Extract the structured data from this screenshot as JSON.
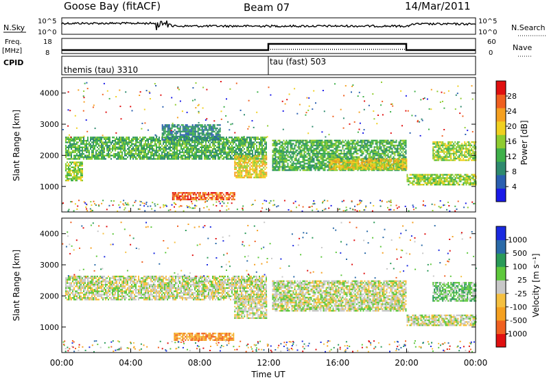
{
  "header": {
    "station": "Goose Bay (fitACF)",
    "beam": "Beam 07",
    "date": "14/Mar/2011"
  },
  "top_panel": {
    "left_label": "N.Sky",
    "right_label": "N.Search",
    "left_ticks": [
      "10^5",
      "10^0"
    ],
    "right_ticks": [
      "10^5",
      "10^0"
    ],
    "freq_label_1": "Freq.",
    "freq_label_2": "[MHz]",
    "freq_ticks": [
      "18",
      "8"
    ],
    "nave_label": "Nave",
    "nave_ticks": [
      "60",
      "0"
    ],
    "cpid_label": "CPID",
    "cpid_1": "themis (tau) 3310",
    "cpid_2": "tau (fast) 503"
  },
  "x_axis": {
    "label": "Time UT",
    "ticks": [
      "00:00",
      "04:00",
      "08:00",
      "12:00",
      "16:00",
      "20:00",
      "00:00"
    ]
  },
  "chart_data": [
    {
      "type": "heatmap",
      "name": "power",
      "ylabel": "Slant Range [km]",
      "y_ticks": [
        1000,
        2000,
        3000,
        4000
      ],
      "ylim": [
        180,
        4500
      ],
      "xlim_hours": [
        0,
        24
      ],
      "colorbar_label": "Power [dB]",
      "colorbar_ticks": [
        "4",
        "8",
        "12",
        "16",
        "20",
        "24",
        "28"
      ],
      "colors": [
        "#1a1ae8",
        "#2a5fb0",
        "#2e8a6e",
        "#3fb04a",
        "#8fcc30",
        "#f0d020",
        "#f5a020",
        "#f06020",
        "#e01010"
      ],
      "regions": [
        {
          "t0": 0.2,
          "t1": 11.9,
          "r0": 1900,
          "r1": 2600,
          "level": 3
        },
        {
          "t0": 5.8,
          "t1": 9.2,
          "r0": 2500,
          "r1": 3000,
          "level": 2
        },
        {
          "t0": 10.0,
          "t1": 11.9,
          "r0": 1300,
          "r1": 2000,
          "level": 5
        },
        {
          "t0": 0.2,
          "t1": 1.2,
          "r0": 1200,
          "r1": 1800,
          "level": 4
        },
        {
          "t0": 6.4,
          "t1": 10.0,
          "r0": 580,
          "r1": 820,
          "level": 7
        },
        {
          "t0": 12.2,
          "t1": 20.0,
          "r0": 1500,
          "r1": 2500,
          "level": 3
        },
        {
          "t0": 15.5,
          "t1": 20.0,
          "r0": 1550,
          "r1": 1900,
          "level": 5
        },
        {
          "t0": 20.0,
          "t1": 24.0,
          "r0": 1050,
          "r1": 1400,
          "level": 4
        },
        {
          "t0": 21.5,
          "t1": 24.0,
          "r0": 1850,
          "r1": 2450,
          "level": 4
        }
      ]
    },
    {
      "type": "heatmap",
      "name": "velocity",
      "ylabel": "Slant Range [km]",
      "y_ticks": [
        1000,
        2000,
        3000,
        4000
      ],
      "ylim": [
        180,
        4500
      ],
      "xlim_hours": [
        0,
        24
      ],
      "colorbar_label": "Velocity [m s⁻¹]",
      "colorbar_ticks": [
        "-1000",
        "-500",
        "-100",
        "-25",
        "25",
        "100",
        "500",
        "1000"
      ],
      "colors": [
        "#e01010",
        "#f06020",
        "#f5a020",
        "#f5c040",
        "#c8c8c8",
        "#5ec83c",
        "#2a9a58",
        "#2a6aa8",
        "#1a2ae0"
      ],
      "regions": [
        {
          "t0": 0.2,
          "t1": 11.9,
          "r0": 1900,
          "r1": 2650,
          "level": 4
        },
        {
          "t0": 10.0,
          "t1": 11.9,
          "r0": 1300,
          "r1": 2000,
          "level": 4
        },
        {
          "t0": 6.5,
          "t1": 10.0,
          "r0": 580,
          "r1": 820,
          "level": 2
        },
        {
          "t0": 12.2,
          "t1": 20.0,
          "r0": 1500,
          "r1": 2500,
          "level": 4
        },
        {
          "t0": 20.0,
          "t1": 24.0,
          "r0": 1050,
          "r1": 1400,
          "level": 4
        },
        {
          "t0": 21.5,
          "t1": 24.0,
          "r0": 1850,
          "r1": 2450,
          "level": 5
        }
      ]
    }
  ]
}
